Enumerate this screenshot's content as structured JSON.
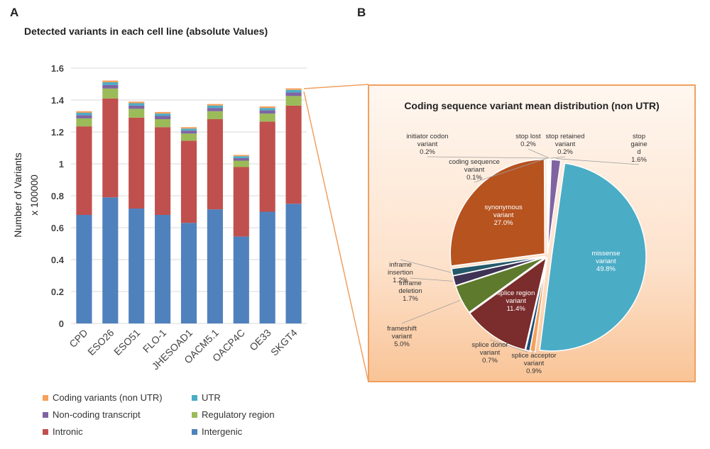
{
  "panels": {
    "a": "A",
    "b": "B"
  },
  "colors": {
    "coding": "#f6a05b",
    "utr": "#4bacc6",
    "noncoding": "#8064a2",
    "regulatory": "#9bbb59",
    "intronic": "#c0504d",
    "intergenic": "#4f81bd"
  },
  "chart_data": [
    {
      "type": "bar",
      "stacked": true,
      "title": "Detected variants in each cell line (absolute Values)",
      "ylabel_line1": "Number of Variants",
      "ylabel_line2": "x 100000",
      "ylim": [
        0,
        1.6
      ],
      "yticks": [
        "0",
        "0.2",
        "0.4",
        "0.6",
        "0.8",
        "1",
        "1.2",
        "1.4",
        "1.6"
      ],
      "grid": true,
      "legend_position": "bottom",
      "categories": [
        "CPD",
        "ESO26",
        "ESO51",
        "FLO-1",
        "JHESOAD1",
        "OACM5.1",
        "OACP4C",
        "OE33",
        "SKGT4"
      ],
      "series": [
        {
          "name": "Intergenic",
          "color": "#4f81bd",
          "values": [
            0.68,
            0.79,
            0.72,
            0.68,
            0.63,
            0.715,
            0.545,
            0.7,
            0.75
          ]
        },
        {
          "name": "Intronic",
          "color": "#c0504d",
          "values": [
            0.555,
            0.62,
            0.57,
            0.55,
            0.515,
            0.565,
            0.435,
            0.565,
            0.615
          ]
        },
        {
          "name": "Regulatory region",
          "color": "#9bbb59",
          "values": [
            0.05,
            0.062,
            0.055,
            0.05,
            0.045,
            0.05,
            0.04,
            0.05,
            0.06
          ]
        },
        {
          "name": "Non-coding transcript",
          "color": "#8064a2",
          "values": [
            0.02,
            0.022,
            0.02,
            0.02,
            0.018,
            0.02,
            0.016,
            0.02,
            0.022
          ]
        },
        {
          "name": "UTR",
          "color": "#4bacc6",
          "values": [
            0.015,
            0.017,
            0.015,
            0.015,
            0.013,
            0.015,
            0.012,
            0.015,
            0.016
          ]
        },
        {
          "name": "Coding variants (non UTR)",
          "color": "#f6a05b",
          "values": [
            0.01,
            0.011,
            0.01,
            0.01,
            0.009,
            0.01,
            0.008,
            0.01,
            0.01
          ]
        }
      ],
      "legend": [
        {
          "label": "Coding variants (non UTR)",
          "color": "#f6a05b"
        },
        {
          "label": "UTR",
          "color": "#4bacc6"
        },
        {
          "label": "Non-coding transcript",
          "color": "#8064a2"
        },
        {
          "label": "Regulatory region",
          "color": "#9bbb59"
        },
        {
          "label": "Intronic",
          "color": "#c0504d"
        },
        {
          "label": "Intergenic",
          "color": "#4f81bd"
        }
      ]
    },
    {
      "type": "pie",
      "title": "Coding sequence variant mean distribution (non UTR)",
      "slices": [
        {
          "label": "missense variant",
          "lines": [
            "missense",
            "variant",
            "49.8%"
          ],
          "value": 49.8,
          "color": "#4bacc6",
          "explode": 6,
          "inside": true,
          "textColor": "#ffffff"
        },
        {
          "label": "splice acceptor variant",
          "lines": [
            "splice acceptor",
            "variant",
            "0.9%"
          ],
          "value": 0.9,
          "color": "#f6a05b",
          "explode": 3,
          "inside": false
        },
        {
          "label": "splice donor variant",
          "lines": [
            "splice donor",
            "variant",
            "0.7%"
          ],
          "value": 0.7,
          "color": "#1f4e79",
          "explode": 3,
          "inside": false
        },
        {
          "label": "splice region variant",
          "lines": [
            "splice region",
            "variant",
            "11.4%"
          ],
          "value": 11.4,
          "color": "#7b2c2c",
          "explode": 3,
          "inside": true,
          "textColor": "#ffffff"
        },
        {
          "label": "frameshift variant",
          "lines": [
            "frameshift",
            "variant",
            "5.0%"
          ],
          "value": 5.0,
          "color": "#5e7a2c",
          "explode": 3,
          "inside": false
        },
        {
          "label": "inframe deletion",
          "lines": [
            "inframe",
            "deletion",
            "1.7%"
          ],
          "value": 1.7,
          "color": "#3f3355",
          "explode": 3,
          "inside": false
        },
        {
          "label": "inframe insertion",
          "lines": [
            "inframe",
            "insertion",
            "1.2%"
          ],
          "value": 1.2,
          "color": "#24596b",
          "explode": 3,
          "inside": false
        },
        {
          "label": "synonymous variant",
          "lines": [
            "synonymous",
            "variant",
            "27.0%"
          ],
          "value": 27.0,
          "color": "#b7531f",
          "explode": 5,
          "inside": true,
          "textColor": "#ffffff"
        },
        {
          "label": "coding sequence variant",
          "lines": [
            "coding sequence",
            "variant",
            "0.1%"
          ],
          "value": 0.1,
          "color": "#2e6f8e",
          "explode": 3,
          "inside": false
        },
        {
          "label": "initiator codon variant",
          "lines": [
            "initiator codon",
            "variant",
            "0.2%"
          ],
          "value": 0.2,
          "color": "#9a9a9a",
          "explode": 3,
          "inside": false
        },
        {
          "label": "stop lost",
          "lines": [
            "stop lost",
            "0.2%"
          ],
          "value": 0.2,
          "color": "#c98f2a",
          "explode": 3,
          "inside": false
        },
        {
          "label": "stop retained variant",
          "lines": [
            "stop retained",
            "variant",
            "0.2%"
          ],
          "value": 0.2,
          "color": "#4a6fa5",
          "explode": 3,
          "inside": false
        },
        {
          "label": "stop gained",
          "lines": [
            "stop",
            "gaine",
            "d",
            "1.6%"
          ],
          "value": 1.6,
          "color": "#8064a2",
          "explode": 3,
          "inside": false
        }
      ]
    }
  ]
}
